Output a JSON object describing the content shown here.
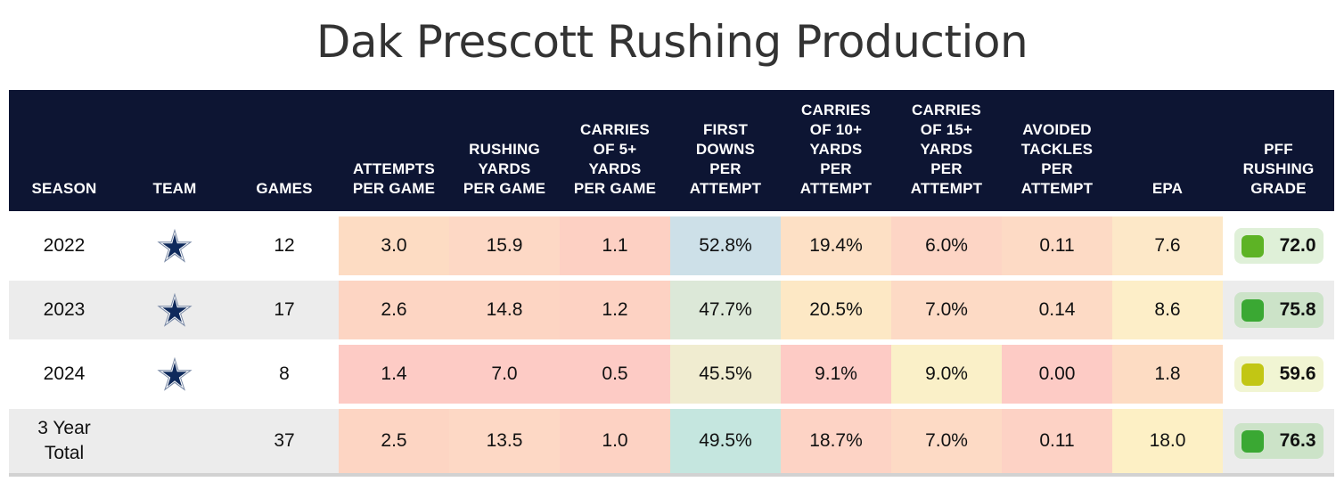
{
  "title": "Dak Prescott Rushing Production",
  "columns": [
    "SEASON",
    "TEAM",
    "GAMES",
    "ATTEMPTS\nPER GAME",
    "RUSHING\nYARDS\nPER GAME",
    "CARRIES\nOF 5+\nYARDS\nPER GAME",
    "FIRST\nDOWNS\nPER\nATTEMPT",
    "CARRIES\nOF 10+\nYARDS\nPER\nATTEMPT",
    "CARRIES\nOF 15+\nYARDS\nPER\nATTEMPT",
    "AVOIDED\nTACKLES\nPER\nATTEMPT",
    "EPA",
    "PFF\nRUSHING\nGRADE"
  ],
  "team_icon": "dallas-cowboys-star-icon",
  "rows": [
    {
      "season": "2022",
      "team": "star",
      "games": "12",
      "stats": [
        "3.0",
        "15.9",
        "1.1",
        "52.8%",
        "19.4%",
        "6.0%",
        "0.11",
        "7.6"
      ],
      "colors": [
        "#fddcc3",
        "#fdd8c5",
        "#fdd0c3",
        "#cde0e8",
        "#fde0c5",
        "#fdd5c5",
        "#fddac5",
        "#fde8c8"
      ],
      "grade": "72.0",
      "grade_color": "#5db325",
      "grade_bg": "#dff0d8"
    },
    {
      "season": "2023",
      "team": "star",
      "games": "17",
      "stats": [
        "2.6",
        "14.8",
        "1.2",
        "47.7%",
        "20.5%",
        "7.0%",
        "0.14",
        "8.6"
      ],
      "colors": [
        "#fdd5c3",
        "#fdd5c3",
        "#fdd2c3",
        "#dce8d8",
        "#fde8c5",
        "#fddac5",
        "#fddac5",
        "#fdeec8"
      ],
      "grade": "75.8",
      "grade_color": "#3aa833",
      "grade_bg": "#cce3c8"
    },
    {
      "season": "2024",
      "team": "star",
      "games": "8",
      "stats": [
        "1.4",
        "7.0",
        "0.5",
        "45.5%",
        "9.1%",
        "9.0%",
        "0.00",
        "1.8"
      ],
      "colors": [
        "#fdcbc5",
        "#fdcbc5",
        "#fdcbc5",
        "#f0ecd0",
        "#fdcbc5",
        "#faf0c8",
        "#fdcbc5",
        "#fddcc3"
      ],
      "grade": "59.6",
      "grade_color": "#c2c614",
      "grade_bg": "#f1f5d3"
    },
    {
      "season": "3 Year\nTotal",
      "team": "",
      "games": "37",
      "stats": [
        "2.5",
        "13.5",
        "1.0",
        "49.5%",
        "18.7%",
        "7.0%",
        "0.11",
        "18.0"
      ],
      "colors": [
        "#fdd5c3",
        "#fdd8c5",
        "#fdd2c3",
        "#c5e6df",
        "#fdd3c5",
        "#fddac5",
        "#fdd2c5",
        "#fdf0c5"
      ],
      "grade": "76.3",
      "grade_color": "#3aa833",
      "grade_bg": "#cce3c8"
    }
  ]
}
